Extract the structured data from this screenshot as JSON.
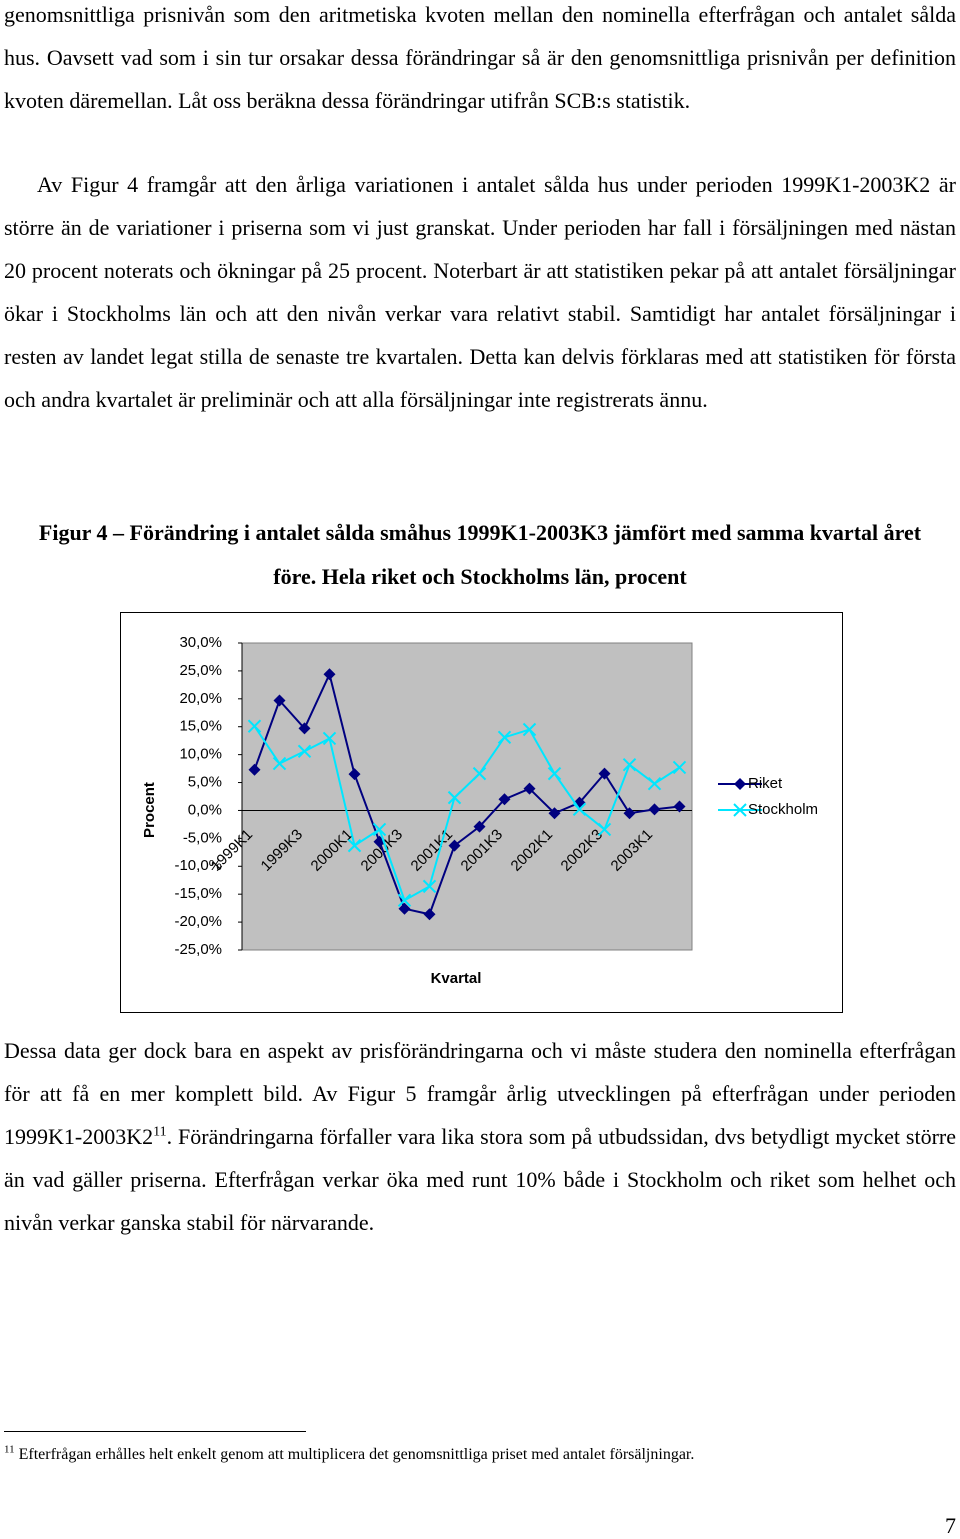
{
  "paragraphs": [
    "genomsnittliga prisnivån som den aritmetiska kvoten mellan den nominella efterfrågan och antalet sålda hus. Oavsett vad som i sin tur orsakar dessa förändringar så är den genomsnittliga prisnivån per definition kvoten däremellan. Låt oss beräkna dessa förändringar utifrån SCB:s statistik.",
    "Av Figur 4 framgår att den årliga variationen i antalet sålda hus under perioden 1999K1-2003K2 är större än de variationer i priserna som vi just granskat. Under perioden har fall i försäljningen med nästan 20 procent noterats och ökningar på 25 procent. Noterbart är att statistiken pekar på att antalet försäljningar ökar i Stockholms län och att den nivån verkar vara relativt stabil. Samtidigt har antalet försäljningar i resten av landet legat stilla de senaste tre kvartalen. Detta kan delvis förklaras med att statistiken för första och andra kvartalet är preliminär och att alla försäljningar inte registrerats ännu."
  ],
  "figure_caption": "Figur 4 – Förändring i antalet sålda småhus 1999K1-2003K3 jämfört med samma kvartal året före. Hela riket och Stockholms län, procent",
  "chart_data": {
    "type": "line",
    "y_label": "Procent",
    "x_label": "Kvartal",
    "categories": [
      "1999K1",
      null,
      "1999K3",
      null,
      "2000K1",
      null,
      "2000K3",
      null,
      "2001K1",
      null,
      "2001K3",
      null,
      "2002K1",
      null,
      "2002K3",
      null,
      "2003K1",
      null
    ],
    "series": [
      {
        "name": "Riket",
        "color": "#000080",
        "values": [
          7.3,
          19.7,
          14.7,
          24.4,
          6.5,
          -5.6,
          -17.6,
          -18.6,
          -6.3,
          -2.9,
          2.0,
          3.9,
          -0.5,
          1.4,
          6.6,
          -0.5,
          0.2,
          0.7
        ]
      },
      {
        "name": "Stockholm",
        "color": "#00e6ff",
        "values": [
          15.1,
          8.4,
          10.6,
          12.9,
          -6.3,
          -3.4,
          -16.1,
          -13.6,
          2.3,
          6.6,
          13.1,
          14.5,
          6.6,
          0.2,
          -3.4,
          8.2,
          4.8,
          7.7
        ]
      }
    ],
    "ylim": [
      -25,
      30
    ],
    "yticks": [
      {
        "value": 30,
        "label": "30,0%"
      },
      {
        "value": 25,
        "label": "25,0%"
      },
      {
        "value": 20,
        "label": "20,0%"
      },
      {
        "value": 15,
        "label": "15,0%"
      },
      {
        "value": 10,
        "label": "10,0%"
      },
      {
        "value": 5,
        "label": "5,0%"
      },
      {
        "value": 0,
        "label": "0,0%"
      },
      {
        "value": -5,
        "label": "-5,0%"
      },
      {
        "value": -10,
        "label": "-10,0%"
      },
      {
        "value": -15,
        "label": "-15,0%"
      },
      {
        "value": -20,
        "label": "-20,0%"
      },
      {
        "value": -25,
        "label": "-25,0%"
      }
    ],
    "grid": false,
    "legend": "right"
  },
  "paragraph_after": {
    "before_note": "Dessa data ger dock bara en aspekt av prisförändringarna och vi måste studera den nominella efterfrågan för att få en mer komplett bild. Av Figur 5 framgår årlig utvecklingen på efterfrågan under perioden 1999K1-2003K2",
    "note_ref": "11",
    "after_note": ". Förändringarna förfaller vara lika stora som på utbudssidan, dvs betydligt mycket större än vad gäller priserna. Efterfrågan verkar öka med runt 10% både i Stockholm och riket som helhet och nivån verkar ganska stabil för närvarande."
  },
  "footnote": {
    "number": "11",
    "text": "Efterfrågan erhålles helt enkelt genom att multiplicera det genomsnittliga priset med antalet försäljningar."
  },
  "page_number": "7"
}
